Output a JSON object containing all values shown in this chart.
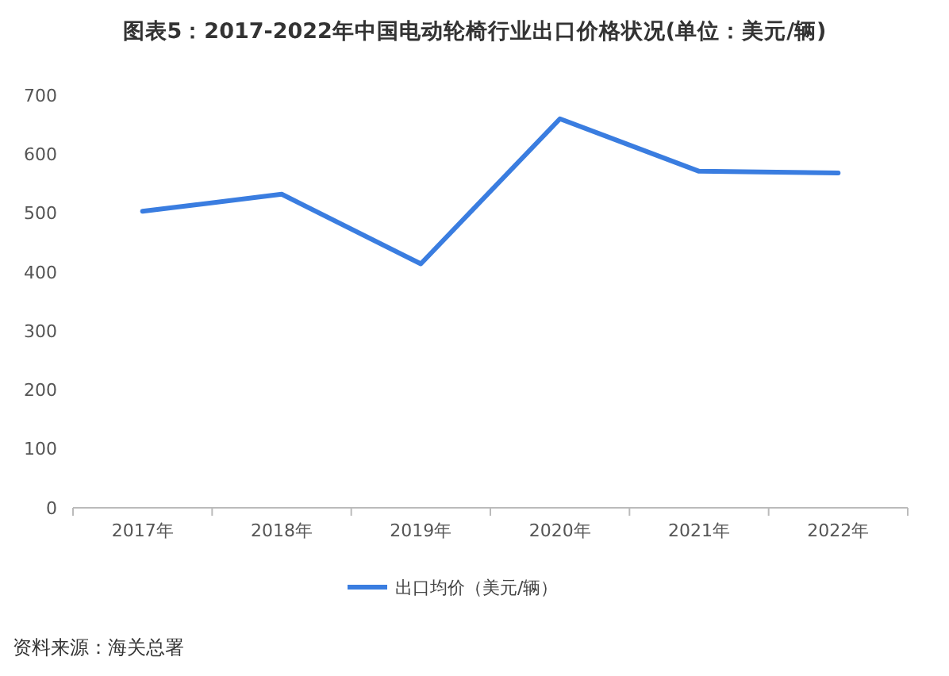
{
  "chart_data": {
    "type": "line",
    "title": "图表5：2017-2022年中国电动轮椅行业出口价格状况(单位：美元/辆)",
    "categories": [
      "2017年",
      "2018年",
      "2019年",
      "2020年",
      "2021年",
      "2022年"
    ],
    "series": [
      {
        "name": "出口均价（美元/辆）",
        "color": "#3a7de0",
        "values": [
          503,
          532,
          414,
          660,
          571,
          568
        ]
      }
    ],
    "ylim": [
      0,
      700
    ],
    "yticks": [
      0,
      100,
      200,
      300,
      400,
      500,
      600,
      700
    ],
    "grid": false,
    "legend": "bottom",
    "marker": "none",
    "line_style": "solid",
    "annotations": [
      "资料来源：海关总署"
    ]
  }
}
